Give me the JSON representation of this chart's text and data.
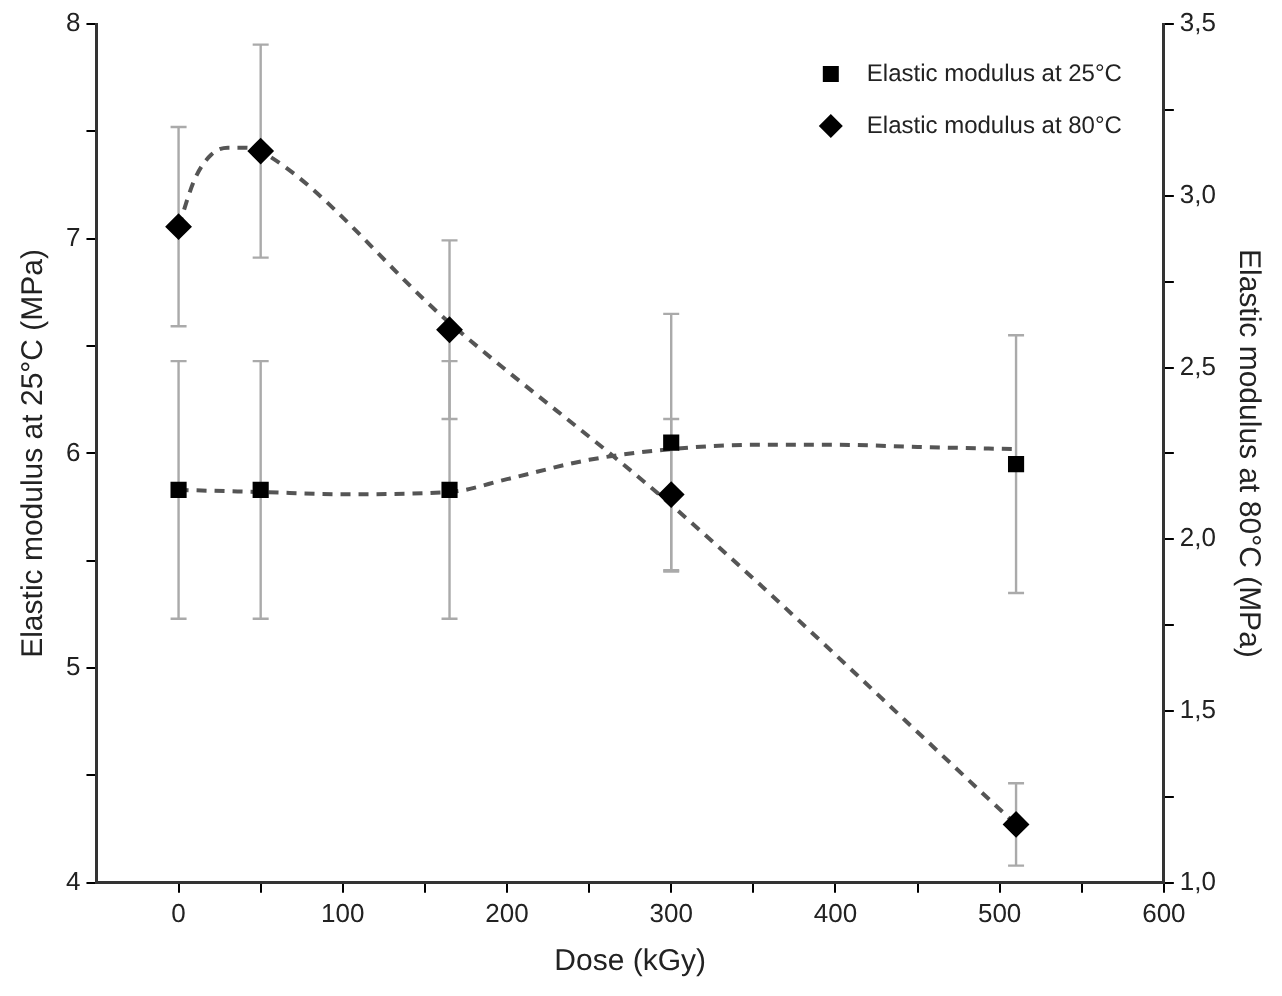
{
  "chart_data": {
    "type": "scatter",
    "xlabel": "Dose (kGy)",
    "ylabel": "Elastic modulus at 25°C (MPa)",
    "y2label": "Elastic modulus at 80°C (MPa)",
    "xlim": [
      -50,
      600
    ],
    "xticks": [
      0,
      {
        "value": 50,
        "label": null
      },
      100,
      {
        "value": 150,
        "label": null
      },
      200,
      {
        "value": 250,
        "label": null
      },
      300,
      {
        "value": 350,
        "label": null
      },
      400,
      {
        "value": 450,
        "label": null
      },
      500,
      {
        "value": 550,
        "label": null
      },
      600
    ],
    "ylim": [
      4,
      8
    ],
    "yticks": [
      4,
      {
        "value": 4.5,
        "label": null
      },
      5,
      {
        "value": 5.5,
        "label": null
      },
      6,
      {
        "value": 6.5,
        "label": null
      },
      7,
      {
        "value": 7.5,
        "label": null
      },
      8
    ],
    "y2lim": [
      1,
      3.5
    ],
    "y2ticks": [
      {
        "value": 1,
        "label": "1,0"
      },
      {
        "value": 1.25,
        "label": null
      },
      {
        "value": 1.5,
        "label": "1,5"
      },
      {
        "value": 1.75,
        "label": null
      },
      {
        "value": 2,
        "label": "2,0"
      },
      {
        "value": 2.25,
        "label": null
      },
      {
        "value": 2.5,
        "label": "2,5"
      },
      {
        "value": 2.75,
        "label": null
      },
      {
        "value": 3,
        "label": "3,0"
      },
      {
        "value": 3.25,
        "label": null
      },
      {
        "value": 3.5,
        "label": "3,5"
      }
    ],
    "grid": false,
    "legend": "top right",
    "series": [
      {
        "name": "Elastic modulus at 25°C",
        "type": "scatter",
        "marker": "square",
        "color": "#000000",
        "x": [
          0,
          50,
          165,
          300,
          510
        ],
        "values": [
          5.83,
          5.83,
          5.83,
          6.05,
          5.95
        ],
        "errors": [
          0.6,
          0.6,
          0.6,
          0.6,
          0.6
        ]
      },
      {
        "name": "Elastic modulus at 80°C",
        "type": "scatter",
        "marker": "diamond",
        "axis": "y2",
        "color": "#000000",
        "x": [
          0,
          50,
          165,
          300,
          510
        ],
        "values": [
          2.91,
          3.13,
          2.61,
          2.13,
          1.17
        ],
        "errors": [
          0.29,
          0.31,
          0.26,
          0.22,
          0.12
        ]
      },
      {
        "type": "line",
        "marker": "none",
        "line_style": "dashed",
        "color": "#555555",
        "x": [
          0,
          50,
          100,
          165,
          200,
          250,
          300,
          350,
          400,
          450,
          510
        ],
        "values": [
          5.83,
          5.82,
          5.81,
          5.82,
          5.88,
          5.97,
          6.02,
          6.04,
          6.04,
          6.03,
          6.02
        ]
      },
      {
        "type": "line",
        "marker": "none",
        "line_style": "dashed",
        "axis": "y2",
        "color": "#555555",
        "x": [
          0,
          10,
          20,
          30,
          40,
          50,
          165,
          300,
          510
        ],
        "values": [
          2.91,
          3.05,
          3.12,
          3.14,
          3.14,
          3.13,
          2.63,
          2.1,
          1.17
        ]
      }
    ]
  }
}
